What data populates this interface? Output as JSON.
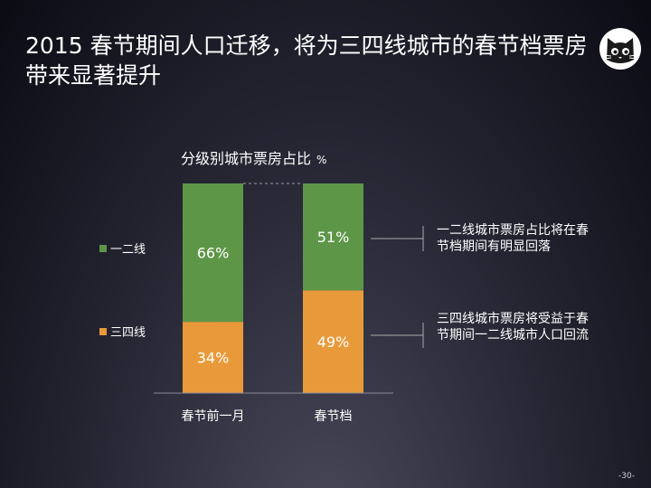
{
  "slide": {
    "title": "2015 春节期间人口迁移，将为三四线城市的春节档票房带来显著提升",
    "page_number": "-30-"
  },
  "legend": [
    {
      "label": "一二线",
      "color": "#5e9648"
    },
    {
      "label": "三四线",
      "color": "#e89a3a"
    }
  ],
  "notes": [
    "一二线城市票房占比将在春节档期间有明显回落",
    "三四线城市票房将受益于春节期间一二线城市人口回流"
  ],
  "chart_data": {
    "type": "bar",
    "stacked": true,
    "title": "分级别城市票房占比",
    "unit": "%",
    "categories": [
      "春节前一月",
      "春节档"
    ],
    "series": [
      {
        "name": "三四线",
        "values": [
          34,
          49
        ],
        "labels": [
          "34%",
          "49%"
        ],
        "color": "#e89a3a"
      },
      {
        "name": "一二线",
        "values": [
          66,
          51
        ],
        "labels": [
          "66%",
          "51%"
        ],
        "color": "#5e9648"
      }
    ],
    "ylim": [
      0,
      100
    ],
    "legend_position": "left"
  }
}
